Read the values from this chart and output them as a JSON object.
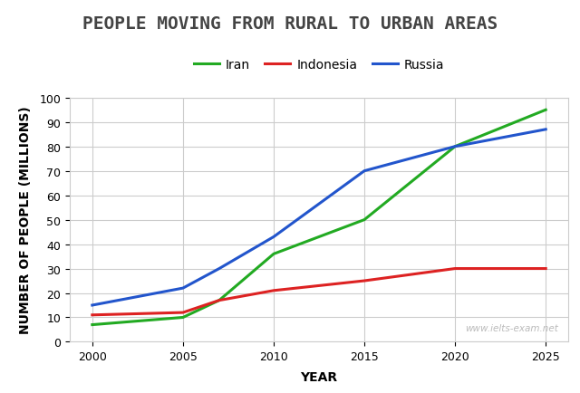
{
  "title": "PEOPLE MOVING FROM RURAL TO URBAN AREAS",
  "xlabel": "YEAR",
  "ylabel": "NUMBER OF PEOPLE (MILLIONS)",
  "watermark": "www.ielts-exam.net",
  "years": [
    2000,
    2005,
    2007,
    2010,
    2015,
    2020,
    2025
  ],
  "series": [
    {
      "label": "Iran",
      "color": "#22aa22",
      "linewidth": 2.2,
      "values": [
        7,
        10,
        17,
        36,
        50,
        80,
        95
      ]
    },
    {
      "label": "Indonesia",
      "color": "#dd2222",
      "linewidth": 2.2,
      "values": [
        11,
        12,
        17,
        21,
        25,
        30,
        30
      ]
    },
    {
      "label": "Russia",
      "color": "#2255cc",
      "linewidth": 2.2,
      "values": [
        15,
        22,
        30,
        43,
        70,
        80,
        87
      ]
    }
  ],
  "ylim": [
    0,
    100
  ],
  "yticks": [
    0,
    10,
    20,
    30,
    40,
    50,
    60,
    70,
    80,
    90,
    100
  ],
  "xticks": [
    2000,
    2005,
    2010,
    2015,
    2020,
    2025
  ],
  "background_color": "#ffffff",
  "grid_color": "#cccccc",
  "title_fontsize": 14,
  "axis_label_fontsize": 10,
  "tick_fontsize": 9,
  "legend_fontsize": 10
}
